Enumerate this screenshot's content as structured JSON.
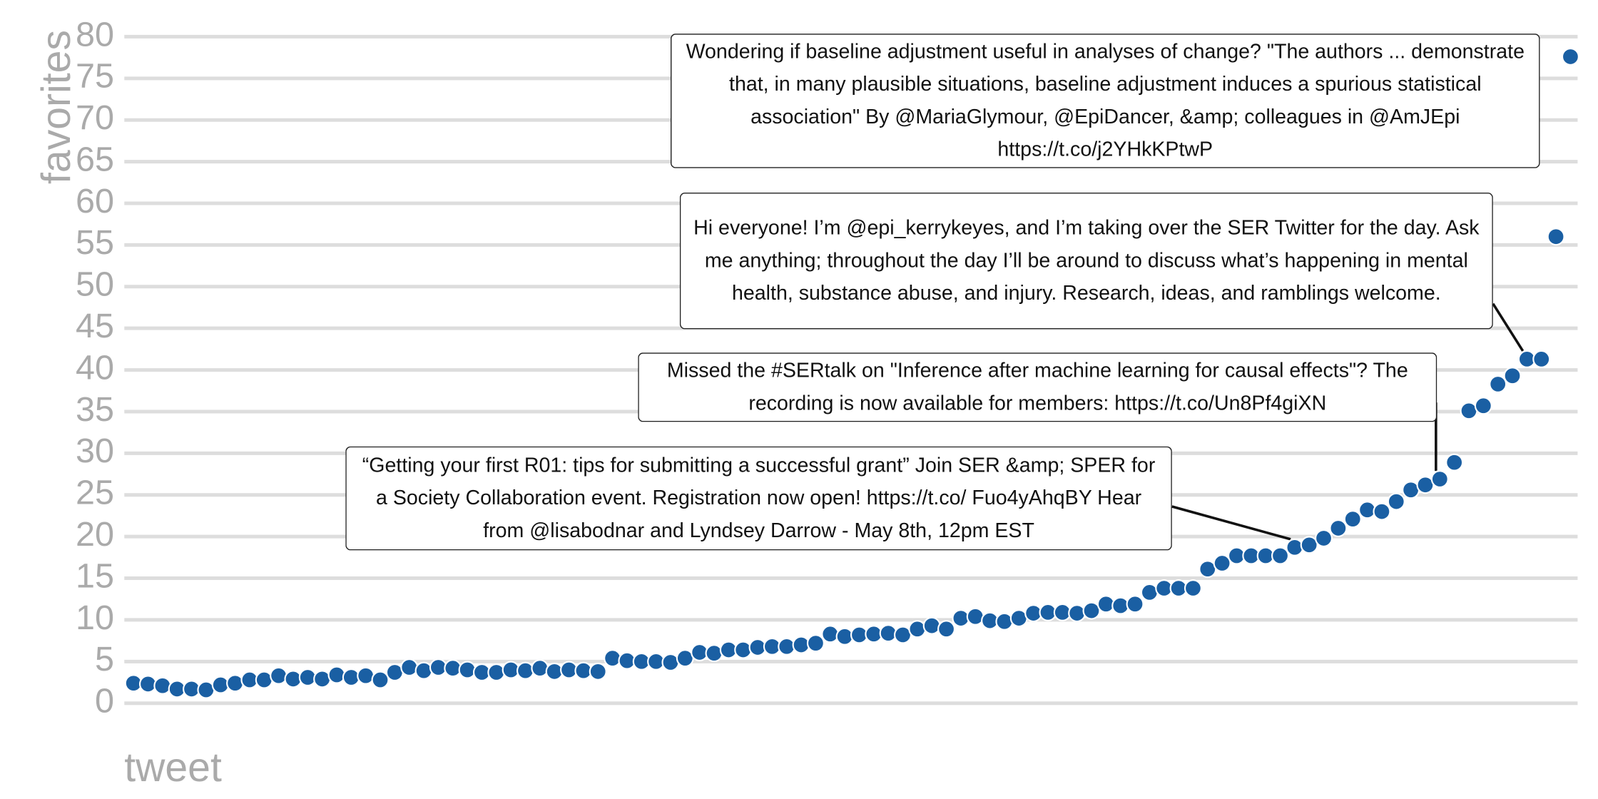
{
  "chart_data": {
    "type": "scatter",
    "y_label": "favorites",
    "x_label": "tweet",
    "values": [
      2.4,
      2.3,
      2.1,
      1.7,
      1.7,
      1.6,
      2.2,
      2.4,
      2.8,
      2.8,
      3.3,
      2.9,
      3.1,
      2.9,
      3.4,
      3.1,
      3.3,
      2.8,
      3.7,
      4.3,
      3.9,
      4.3,
      4.2,
      4.0,
      3.7,
      3.7,
      4.0,
      3.9,
      4.2,
      3.8,
      4.0,
      3.9,
      3.8,
      5.4,
      5.1,
      5.0,
      5.0,
      4.9,
      5.4,
      6.1,
      6.0,
      6.4,
      6.4,
      6.7,
      6.8,
      6.8,
      7.0,
      7.2,
      8.3,
      8.0,
      8.2,
      8.3,
      8.4,
      8.2,
      8.9,
      9.3,
      8.9,
      10.2,
      10.4,
      9.9,
      9.8,
      10.2,
      10.8,
      10.9,
      10.9,
      10.8,
      11.1,
      11.9,
      11.7,
      11.9,
      13.3,
      13.8,
      13.8,
      13.8,
      16.1,
      16.8,
      17.7,
      17.7,
      17.7,
      17.7,
      18.7,
      19.0,
      19.8,
      21.0,
      22.1,
      23.2,
      23.0,
      24.2,
      25.6,
      26.2,
      26.9,
      28.9,
      35.1,
      35.7,
      38.3,
      39.3,
      41.3,
      41.3,
      56.0,
      77.6
    ],
    "color": "#1a5fa3",
    "ylim": [
      0,
      80
    ],
    "yticks": [
      0,
      5,
      10,
      15,
      20,
      25,
      30,
      35,
      40,
      45,
      50,
      55,
      60,
      65,
      70,
      75,
      80
    ],
    "grid": true,
    "annotations": [
      "Wondering if baseline adjustment useful in analyses of change? \"The authors ... demonstrate that, in many plausible situations, baseline adjustment induces a spurious statistical association\" By @MariaGlymour, @EpiDancer, &amp; colleagues in @AmJEpi https://t.co/j2YHkKPtwP",
      "Hi everyone! I’m @epi_kerrykeyes, and I’m taking over the SER Twitter for the day. Ask me anything; throughout the day I’ll be around to discuss what’s happening in mental health, substance abuse, and injury. Research, ideas, and ramblings welcome.",
      "Missed the #SERtalk on \"Inference after machine learning for causal effects\"? The recording is now available for members: https://t.co/Un8Pf4giXN",
      "“Getting your first R01: tips for submitting a successful grant” Join SER &amp; SPER for a Society Collaboration event. Registration now open! https://t.co/ Fuo4yAhqBY Hear from @lisabodnar and Lyndsey Darrow - May 8th, 12pm EST"
    ]
  }
}
